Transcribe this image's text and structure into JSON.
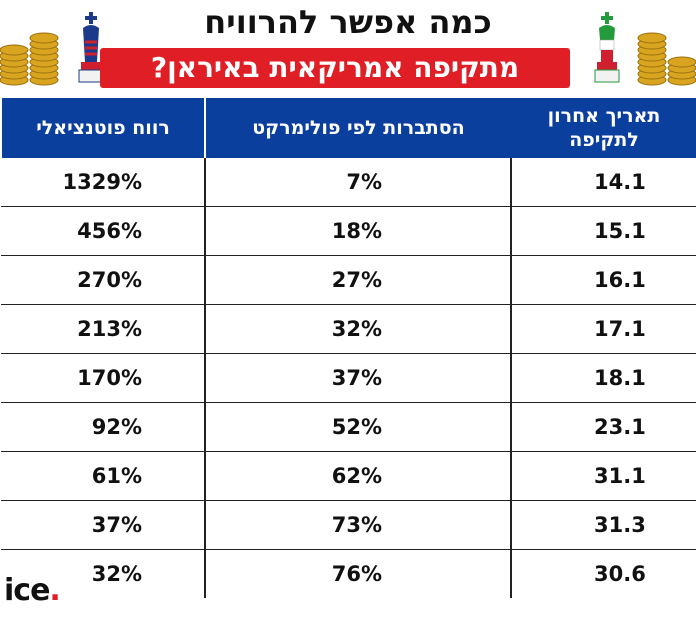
{
  "header": {
    "title": "כמה אפשר להרוויח",
    "subtitle": "מתקיפה אמריקאית באיראן?"
  },
  "colors": {
    "accent_red": "#e01e26",
    "header_blue": "#0b3f9e"
  },
  "icons": [
    "gold-coins-icon",
    "usa-chess-king-icon",
    "iran-chess-king-icon"
  ],
  "logo": {
    "text": "ice",
    "dot": "."
  },
  "chart_data": {
    "type": "table",
    "columns": [
      "תאריך אחרון לתקיפה",
      "הסתברות לפי פולימרקט",
      "רווח פוטנציאלי"
    ],
    "rows": [
      [
        "14.1",
        "7%",
        "1329%"
      ],
      [
        "15.1",
        "18%",
        "456%"
      ],
      [
        "16.1",
        "27%",
        "270%"
      ],
      [
        "17.1",
        "32%",
        "213%"
      ],
      [
        "18.1",
        "37%",
        "170%"
      ],
      [
        "23.1",
        "52%",
        "92%"
      ],
      [
        "31.1",
        "62%",
        "61%"
      ],
      [
        "31.3",
        "73%",
        "37%"
      ],
      [
        "30.6",
        "76%",
        "32%"
      ]
    ]
  }
}
